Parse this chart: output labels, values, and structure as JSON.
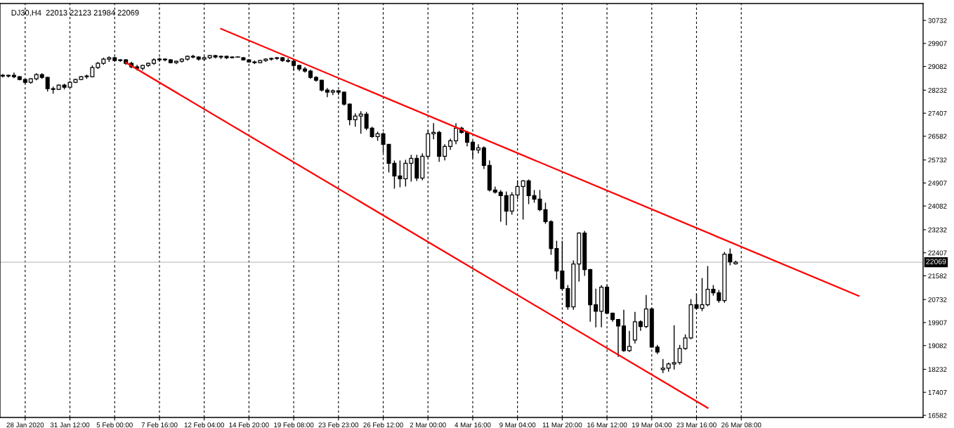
{
  "chart_data": {
    "type": "candlestick",
    "title": "DJ30,H4  22013 22123 21984 22069",
    "categories": [
      null,
      null,
      null,
      null,
      "28 Jan 2020",
      null,
      null,
      null,
      null,
      null,
      null,
      null,
      "31 Jan 12:00",
      null,
      null,
      null,
      null,
      null,
      null,
      null,
      "5 Feb 00:00",
      null,
      null,
      null,
      null,
      null,
      null,
      null,
      "7 Feb 16:00",
      null,
      null,
      null,
      null,
      null,
      null,
      null,
      "12 Feb 04:00",
      null,
      null,
      null,
      null,
      null,
      null,
      null,
      "14 Feb 20:00",
      null,
      null,
      null,
      null,
      null,
      null,
      null,
      "19 Feb 08:00",
      null,
      null,
      null,
      null,
      null,
      null,
      null,
      "23 Feb 23:00",
      null,
      null,
      null,
      null,
      null,
      null,
      null,
      "26 Feb 12:00",
      null,
      null,
      null,
      null,
      null,
      null,
      null,
      "2 Mar 00:00",
      null,
      null,
      null,
      null,
      null,
      null,
      null,
      "4 Mar 16:00",
      null,
      null,
      null,
      null,
      null,
      null,
      null,
      "9 Mar 04:00",
      null,
      null,
      null,
      null,
      null,
      null,
      null,
      "11 Mar 20:00",
      null,
      null,
      null,
      null,
      null,
      null,
      null,
      "16 Mar 12:00",
      null,
      null,
      null,
      null,
      null,
      null,
      null,
      "19 Mar 04:00",
      null,
      null,
      null,
      null,
      null,
      null,
      null,
      "23 Mar 16:00",
      null,
      null,
      null,
      null,
      null,
      null,
      null,
      "26 Mar 08:00",
      null,
      null,
      null,
      null,
      null,
      null,
      null,
      null,
      null,
      null,
      null,
      null,
      null,
      null,
      null,
      null,
      null,
      null,
      null,
      null,
      null,
      null,
      null,
      null,
      null,
      null,
      null,
      null,
      null,
      null,
      null,
      null
    ],
    "ohlc": [
      [
        28765,
        28815,
        28689,
        28739
      ],
      [
        28739,
        28790,
        28689,
        28765
      ],
      [
        28765,
        28865,
        28664,
        28714
      ],
      [
        28714,
        28739,
        28588,
        28613
      ],
      [
        28613,
        28638,
        28462,
        28512
      ],
      [
        28512,
        28664,
        28462,
        28638
      ],
      [
        28638,
        28840,
        28588,
        28790
      ],
      [
        28790,
        28840,
        28638,
        28689
      ],
      [
        28689,
        28714,
        28185,
        28285
      ],
      [
        28285,
        28361,
        28109,
        28260
      ],
      [
        28260,
        28437,
        28235,
        28411
      ],
      [
        28411,
        28462,
        28260,
        28336
      ],
      [
        28336,
        28563,
        28310,
        28512
      ],
      [
        28512,
        28638,
        28487,
        28613
      ],
      [
        28613,
        28739,
        28588,
        28714
      ],
      [
        28714,
        28790,
        28638,
        28739
      ],
      [
        28714,
        29118,
        28689,
        29042
      ],
      [
        29042,
        29244,
        28991,
        29193
      ],
      [
        29193,
        29395,
        29143,
        29345
      ],
      [
        29345,
        29445,
        29244,
        29395
      ],
      [
        29395,
        29420,
        29244,
        29294
      ],
      [
        29294,
        29345,
        29244,
        29319
      ],
      [
        29319,
        29345,
        29143,
        29193
      ],
      [
        29193,
        29244,
        29017,
        29067
      ],
      [
        29067,
        29143,
        28941,
        29017
      ],
      [
        29017,
        29143,
        28941,
        29118
      ],
      [
        29118,
        29219,
        29067,
        29193
      ],
      [
        29193,
        29370,
        29143,
        29319
      ],
      [
        29319,
        29395,
        29244,
        29345
      ],
      [
        29345,
        29370,
        29269,
        29319
      ],
      [
        29319,
        29345,
        29193,
        29219
      ],
      [
        29219,
        29294,
        29168,
        29269
      ],
      [
        29269,
        29370,
        29219,
        29345
      ],
      [
        29345,
        29471,
        29294,
        29445
      ],
      [
        29445,
        29496,
        29370,
        29420
      ],
      [
        29420,
        29445,
        29294,
        29345
      ],
      [
        29345,
        29445,
        29294,
        29395
      ],
      [
        29395,
        29496,
        29345,
        29471
      ],
      [
        29471,
        29496,
        29370,
        29420
      ],
      [
        29420,
        29471,
        29345,
        29445
      ],
      [
        29445,
        29471,
        29345,
        29395
      ],
      [
        29395,
        29445,
        29370,
        29420
      ],
      [
        29420,
        29445,
        29395,
        29420
      ],
      [
        29395,
        29420,
        29294,
        29319
      ],
      [
        29319,
        29345,
        29219,
        29244
      ],
      [
        29244,
        29294,
        29168,
        29219
      ],
      [
        29219,
        29319,
        29193,
        29294
      ],
      [
        29294,
        29370,
        29244,
        29345
      ],
      [
        29345,
        29395,
        29294,
        29370
      ],
      [
        29370,
        29420,
        29319,
        29395
      ],
      [
        29395,
        29420,
        29244,
        29294
      ],
      [
        29294,
        29370,
        29219,
        29269
      ],
      [
        29269,
        29319,
        28941,
        29118
      ],
      [
        29118,
        29143,
        28916,
        28991
      ],
      [
        28991,
        29067,
        28865,
        28916
      ],
      [
        28916,
        28966,
        28638,
        28689
      ],
      [
        28689,
        28739,
        28538,
        28588
      ],
      [
        28588,
        28588,
        28185,
        28235
      ],
      [
        28235,
        28310,
        27983,
        28159
      ],
      [
        28159,
        28260,
        28058,
        28210
      ],
      [
        28210,
        28235,
        28058,
        28159
      ],
      [
        28159,
        28185,
        27680,
        27731
      ],
      [
        27731,
        27756,
        26974,
        27176
      ],
      [
        27176,
        27403,
        26923,
        27302
      ],
      [
        27302,
        27478,
        26671,
        27377
      ],
      [
        27377,
        27453,
        26797,
        26873
      ],
      [
        26873,
        26923,
        26520,
        26570
      ],
      [
        26570,
        26747,
        26419,
        26671
      ],
      [
        26671,
        26722,
        25990,
        26293
      ],
      [
        26293,
        26293,
        25284,
        25612
      ],
      [
        25612,
        25713,
        24704,
        25158
      ],
      [
        25158,
        25713,
        24754,
        25057
      ],
      [
        25057,
        25738,
        24780,
        25612
      ],
      [
        25612,
        25915,
        24956,
        25789
      ],
      [
        25789,
        25915,
        24981,
        25082
      ],
      [
        25082,
        25965,
        25007,
        25864
      ],
      [
        25864,
        26797,
        25789,
        26671
      ],
      [
        26671,
        27049,
        26469,
        26722
      ],
      [
        26722,
        26772,
        25663,
        25864
      ],
      [
        25864,
        26293,
        25713,
        26217
      ],
      [
        26217,
        26495,
        26091,
        26419
      ],
      [
        26419,
        27049,
        26293,
        26873
      ],
      [
        26873,
        26923,
        26671,
        26722
      ],
      [
        26722,
        26772,
        26217,
        26369
      ],
      [
        26369,
        26419,
        25789,
        26091
      ],
      [
        26091,
        26293,
        25965,
        26167
      ],
      [
        26167,
        26217,
        25410,
        25536
      ],
      [
        25536,
        25713,
        24603,
        24654
      ],
      [
        24654,
        24780,
        24528,
        24578
      ],
      [
        24578,
        24654,
        23519,
        24452
      ],
      [
        24452,
        24603,
        23393,
        23897
      ],
      [
        23897,
        24578,
        23771,
        24477
      ],
      [
        24477,
        25007,
        24326,
        24780
      ],
      [
        24780,
        25007,
        23594,
        24982
      ],
      [
        24982,
        25032,
        24149,
        24452
      ],
      [
        24452,
        24654,
        24200,
        24326
      ],
      [
        24326,
        24654,
        23897,
        23947
      ],
      [
        23947,
        24200,
        23443,
        23519
      ],
      [
        23519,
        23570,
        22333,
        22560
      ],
      [
        22560,
        22838,
        21451,
        21753
      ],
      [
        21753,
        22838,
        21072,
        21123
      ],
      [
        21123,
        21249,
        20366,
        20467
      ],
      [
        20467,
        22131,
        20366,
        22006
      ],
      [
        22006,
        23140,
        21375,
        23115
      ],
      [
        23115,
        23191,
        21577,
        21803
      ],
      [
        21803,
        21829,
        19937,
        20542
      ],
      [
        20542,
        21123,
        19736,
        20311
      ],
      [
        20311,
        21249,
        19736,
        21173
      ],
      [
        21173,
        21249,
        20215,
        20240
      ],
      [
        20240,
        20265,
        19937,
        20013
      ],
      [
        20013,
        20038,
        18677,
        19786
      ],
      [
        19786,
        20366,
        18853,
        18904
      ],
      [
        18904,
        19610,
        18853,
        19055
      ],
      [
        19282,
        20291,
        19156,
        19937
      ],
      [
        19937,
        19988,
        19610,
        19761
      ],
      [
        19761,
        20896,
        19710,
        20391
      ],
      [
        20391,
        20441,
        19005,
        19030
      ],
      [
        19030,
        19105,
        18777,
        18853
      ],
      [
        18223,
        18601,
        18097,
        18273
      ],
      [
        18273,
        18475,
        18147,
        18424
      ],
      [
        18424,
        19811,
        18223,
        18475
      ],
      [
        18475,
        19105,
        18399,
        18979
      ],
      [
        18979,
        19484,
        18929,
        19357
      ],
      [
        19357,
        20745,
        19307,
        20542
      ],
      [
        20542,
        20946,
        20366,
        20417
      ],
      [
        20417,
        21501,
        20315,
        20542
      ],
      [
        20542,
        21930,
        20492,
        21097
      ],
      [
        21097,
        21249,
        20871,
        20971
      ],
      [
        20971,
        21072,
        20617,
        20694
      ],
      [
        20694,
        22434,
        20617,
        22359
      ],
      [
        22359,
        22560,
        21955,
        22080
      ],
      [
        22013,
        22123,
        21984,
        22069
      ],
      null,
      null,
      null,
      null,
      null,
      null,
      null,
      null,
      null,
      null,
      null,
      null,
      null,
      null,
      null,
      null,
      null,
      null,
      null,
      null,
      null,
      null,
      null,
      null,
      null,
      null,
      null,
      null,
      null,
      null,
      null,
      null,
      null
    ],
    "series": [
      {
        "type": "line",
        "color": "#ff0000",
        "values": [
          null,
          null,
          null,
          null,
          null,
          null,
          null,
          null,
          null,
          null,
          null,
          null,
          null,
          null,
          null,
          null,
          null,
          null,
          null,
          null,
          null,
          null,
          null,
          null,
          null,
          null,
          null,
          null,
          null,
          null,
          null,
          null,
          null,
          null,
          null,
          null,
          null,
          null,
          null,
          30430,
          null,
          null,
          null,
          null,
          null,
          null,
          null,
          null,
          null,
          null,
          null,
          null,
          null,
          null,
          null,
          null,
          null,
          null,
          null,
          null,
          null,
          null,
          null,
          null,
          null,
          null,
          null,
          null,
          null,
          null,
          null,
          null,
          null,
          null,
          null,
          null,
          null,
          null,
          null,
          null,
          null,
          null,
          null,
          null,
          null,
          null,
          null,
          null,
          null,
          null,
          null,
          null,
          null,
          null,
          null,
          null,
          null,
          null,
          null,
          null,
          null,
          null,
          null,
          null,
          null,
          null,
          null,
          null,
          null,
          null,
          null,
          null,
          null,
          null,
          null,
          null,
          null,
          null,
          null,
          null,
          null,
          null,
          null,
          null,
          null,
          null,
          null,
          null,
          null,
          null,
          null,
          null,
          null,
          null,
          null,
          null,
          null,
          null,
          null,
          null,
          null,
          null,
          null,
          null,
          null,
          null,
          null,
          null,
          null,
          null,
          null,
          null,
          null,
          20860,
          null,
          null,
          null,
          null,
          null,
          null,
          null,
          null,
          null,
          null,
          null
        ]
      },
      {
        "type": "line",
        "color": "#ff0000",
        "values": [
          null,
          null,
          null,
          null,
          null,
          null,
          null,
          null,
          null,
          null,
          null,
          null,
          null,
          null,
          null,
          null,
          null,
          null,
          null,
          null,
          null,
          null,
          29220,
          null,
          null,
          null,
          null,
          null,
          null,
          null,
          null,
          null,
          null,
          null,
          null,
          null,
          null,
          null,
          null,
          null,
          null,
          null,
          null,
          null,
          null,
          null,
          null,
          null,
          null,
          null,
          null,
          null,
          null,
          null,
          null,
          null,
          null,
          null,
          null,
          null,
          null,
          null,
          null,
          null,
          null,
          null,
          null,
          null,
          null,
          null,
          null,
          null,
          null,
          null,
          null,
          null,
          null,
          null,
          null,
          null,
          null,
          null,
          null,
          null,
          null,
          null,
          null,
          null,
          null,
          null,
          null,
          null,
          null,
          null,
          null,
          null,
          null,
          null,
          null,
          null,
          null,
          null,
          null,
          null,
          null,
          null,
          null,
          null,
          null,
          null,
          null,
          null,
          null,
          null,
          null,
          null,
          null,
          null,
          null,
          null,
          null,
          null,
          null,
          null,
          null,
          null,
          16850,
          null,
          null,
          null,
          null,
          null,
          null,
          null,
          null,
          null,
          null,
          null,
          null,
          null,
          null,
          null,
          null,
          null,
          null,
          null,
          null,
          null,
          null,
          null,
          null,
          null,
          null,
          null,
          null,
          null,
          null,
          null,
          null,
          null,
          null,
          null,
          null,
          null,
          null
        ]
      }
    ],
    "ylim": [
      16506,
      31337
    ],
    "yticks": [
      16582,
      17407,
      18232,
      19082,
      19907,
      20732,
      21582,
      22407,
      23232,
      24082,
      24907,
      25732,
      26582,
      27407,
      28232,
      29082,
      29907,
      30732
    ],
    "grid": "x",
    "ref_lines": [
      {
        "axis": "y",
        "value": 22069,
        "label": "22069",
        "color": "#c0c0c0"
      }
    ]
  }
}
